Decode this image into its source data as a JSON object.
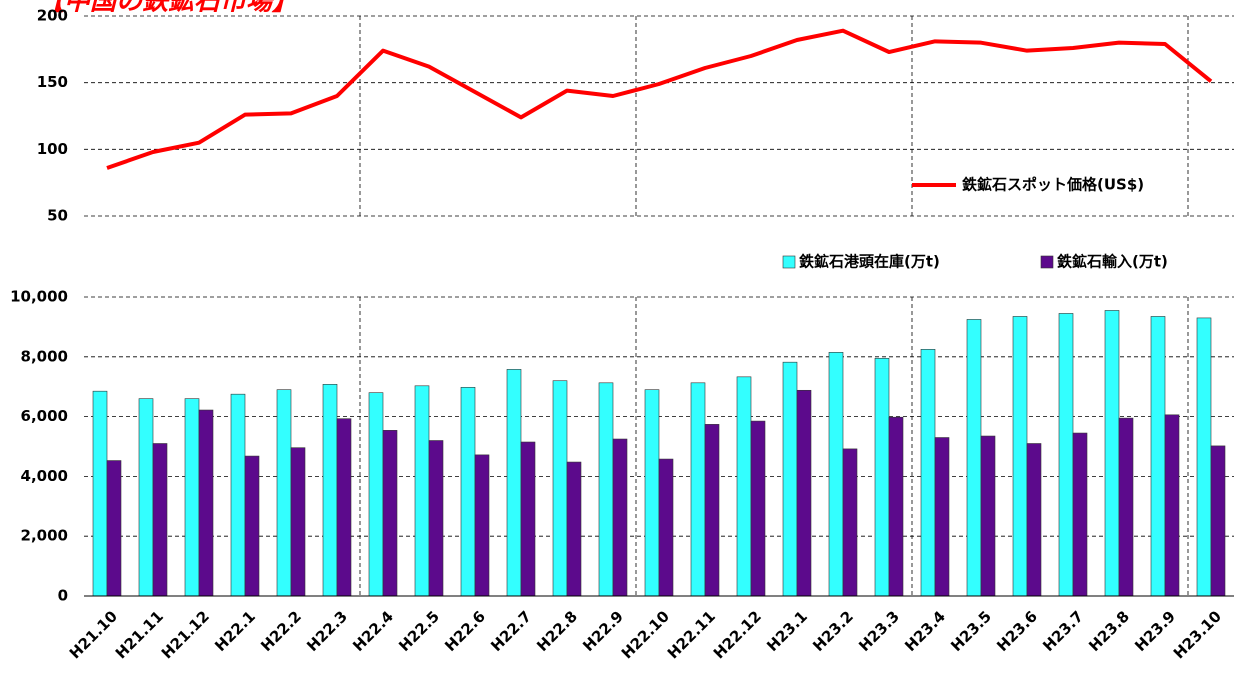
{
  "chart_data": [
    {
      "type": "line",
      "title": "【中国の鉄鉱石市場】",
      "categories": [
        "H21.10",
        "H21.11",
        "H21.12",
        "H22.1",
        "H22.2",
        "H22.3",
        "H22.4",
        "H22.5",
        "H22.6",
        "H22.7",
        "H22.8",
        "H22.9",
        "H22.10",
        "H22.11",
        "H22.12",
        "H23.1",
        "H23.2",
        "H23.3",
        "H23.4",
        "H23.5",
        "H23.6",
        "H23.7",
        "H23.8",
        "H23.9",
        "H23.10"
      ],
      "series": [
        {
          "name": "鉄鉱石スポット価格(US$)",
          "color": "#ff0000",
          "values": [
            86,
            98,
            105,
            126,
            127,
            140,
            174,
            162,
            143,
            124,
            144,
            140,
            149,
            161,
            170,
            182,
            189,
            173,
            181,
            180,
            174,
            176,
            180,
            179,
            151
          ]
        }
      ],
      "ylim": [
        50,
        200
      ],
      "yticks": [
        50,
        100,
        150,
        200
      ],
      "grid": true,
      "legend": "lower right"
    },
    {
      "type": "bar",
      "categories": [
        "H21.10",
        "H21.11",
        "H21.12",
        "H22.1",
        "H22.2",
        "H22.3",
        "H22.4",
        "H22.5",
        "H22.6",
        "H22.7",
        "H22.8",
        "H22.9",
        "H22.10",
        "H22.11",
        "H22.12",
        "H23.1",
        "H23.2",
        "H23.3",
        "H23.4",
        "H23.5",
        "H23.6",
        "H23.7",
        "H23.8",
        "H23.9",
        "H23.10"
      ],
      "series": [
        {
          "name": "鉄鉱石港頭在庫(万t)",
          "color": "#33ffff",
          "values": [
            6850,
            6600,
            6600,
            6750,
            6900,
            7080,
            6800,
            7030,
            6980,
            7580,
            7200,
            7130,
            6900,
            7130,
            7330,
            7820,
            8150,
            7950,
            8250,
            9250,
            9350,
            9450,
            9550,
            9350,
            9300
          ]
        },
        {
          "name": "鉄鉱石輸入(万t)",
          "color": "#5c0a8c",
          "values": [
            4530,
            5100,
            6220,
            4680,
            4960,
            5930,
            5540,
            5200,
            4720,
            5150,
            4480,
            5250,
            4580,
            5740,
            5850,
            6880,
            4920,
            5980,
            5300,
            5350,
            5100,
            5450,
            5950,
            6060,
            5020
          ]
        }
      ],
      "ylim": [
        0,
        10000
      ],
      "yticks": [
        0,
        {
          "value": 2000,
          "label": "2,000"
        },
        {
          "value": 4000,
          "label": "4,000"
        },
        {
          "value": 6000,
          "label": "6,000"
        },
        {
          "value": 8000,
          "label": "8,000"
        },
        {
          "value": 10000,
          "label": "10,000"
        }
      ],
      "grid": true,
      "legend": "upper right"
    }
  ]
}
